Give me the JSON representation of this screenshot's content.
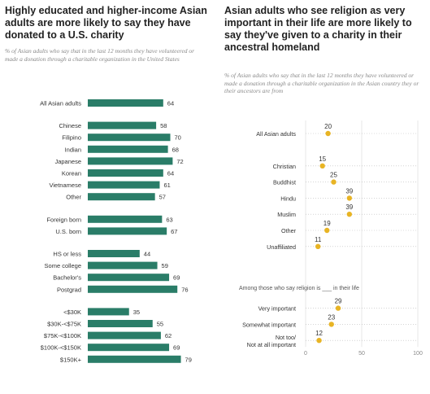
{
  "chart_data": [
    {
      "type": "bar",
      "title": "Highly educated and higher-income Asian adults are more likely to say they have donated to a U.S. charity",
      "subtitle": "% of Asian adults who say that in the last 12 months they have volunteered or made a donation through a charitable organization in the United States",
      "groups": [
        {
          "categories": [
            "All Asian adults"
          ],
          "values": [
            64
          ]
        },
        {
          "categories": [
            "Chinese",
            "Filipino",
            "Indian",
            "Japanese",
            "Korean",
            "Vietnamese",
            "Other"
          ],
          "values": [
            58,
            70,
            68,
            72,
            64,
            61,
            57
          ]
        },
        {
          "categories": [
            "Foreign born",
            "U.S. born"
          ],
          "values": [
            63,
            67
          ]
        },
        {
          "categories": [
            "HS or less",
            "Some college",
            "Bachelor's",
            "Postgrad"
          ],
          "values": [
            44,
            59,
            69,
            76
          ]
        },
        {
          "categories": [
            "<$30K",
            "$30K-<$75K",
            "$75K-<$100K",
            "$100K-<$150K",
            "$150K+"
          ],
          "values": [
            35,
            55,
            62,
            69,
            79
          ]
        }
      ],
      "xlim": [
        0,
        100
      ],
      "color": "#2a7d68"
    },
    {
      "type": "scatter",
      "title": "Asian adults who see religion as very important in their life are more likely to say they've given to a charity in their ancestral homeland",
      "subtitle": "% of Asian adults who say that in the last 12 months they have volunteered or made a donation through a charitable organization in the Asian country they or their ancestors are from",
      "groups": [
        {
          "categories": [
            "All Asian adults"
          ],
          "values": [
            20
          ]
        },
        {
          "categories": [
            "Christian",
            "Buddhist",
            "Hindu",
            "Muslim",
            "Other",
            "Unaffiliated"
          ],
          "values": [
            15,
            25,
            39,
            39,
            19,
            11
          ]
        },
        {
          "note": "Among those who say religion is ___ in their life",
          "categories": [
            "Very important",
            "Somewhat important",
            "Not too/ Not at all important"
          ],
          "values": [
            29,
            23,
            12
          ]
        }
      ],
      "xlim": [
        0,
        100
      ],
      "xticks": [
        "0",
        "50",
        "100"
      ],
      "color": "#e8b424"
    }
  ]
}
